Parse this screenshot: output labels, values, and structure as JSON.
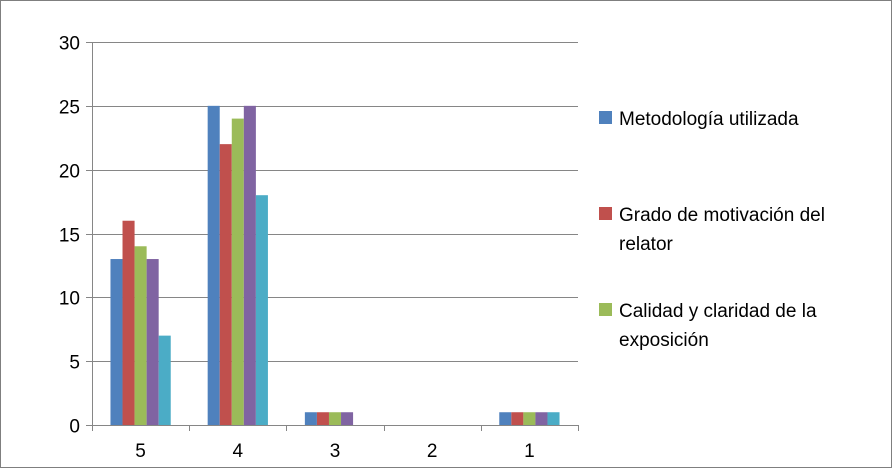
{
  "chart_data": {
    "type": "bar",
    "title": "",
    "xlabel": "",
    "ylabel": "",
    "categories": [
      "5",
      "4",
      "3",
      "2",
      "1"
    ],
    "ylim": [
      0,
      30
    ],
    "yticks": [
      0,
      5,
      10,
      15,
      20,
      25,
      30
    ],
    "grid": "horizontal",
    "legend_position": "right",
    "series": [
      {
        "name": "Metodología utilizada",
        "color": "#4F81BD",
        "values": [
          13,
          25,
          1,
          0,
          1
        ]
      },
      {
        "name": "Grado de motivación del relator",
        "color": "#C0504D",
        "values": [
          16,
          22,
          1,
          0,
          1
        ]
      },
      {
        "name": "Calidad y claridad de la exposición",
        "color": "#9BBB59",
        "values": [
          14,
          24,
          1,
          0,
          1
        ]
      },
      {
        "name": "",
        "color": "#8064A2",
        "values": [
          13,
          25,
          1,
          0,
          1
        ]
      },
      {
        "name": "",
        "color": "#4BACC6",
        "values": [
          7,
          18,
          0,
          0,
          1
        ]
      }
    ],
    "legend_entries": [
      {
        "series_index": 0,
        "lines": [
          "Metodología utilizada"
        ]
      },
      {
        "series_index": 1,
        "lines": [
          "Grado de motivación del",
          "relator"
        ]
      },
      {
        "series_index": 2,
        "lines": [
          "Calidad y claridad de la",
          "exposición"
        ]
      }
    ]
  }
}
